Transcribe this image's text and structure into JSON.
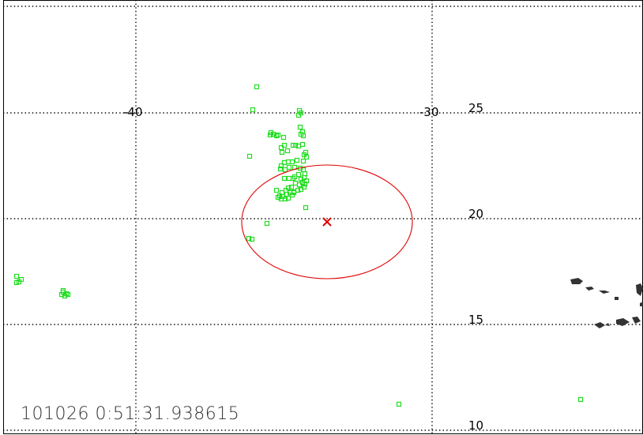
{
  "map": {
    "timestamp": "101026 0:51:31.938615",
    "lon_labels": [
      "-40",
      "-30"
    ],
    "lat_labels": [
      "25",
      "20",
      "15",
      "10"
    ],
    "colors": {
      "grid": "#000000",
      "detection": "#22dd22",
      "ellipse": "#e00000",
      "center": "#e00000",
      "land": "#333333",
      "background": "#ffffff"
    },
    "marker_symbols": {
      "detection": "green-square",
      "center": "red-x"
    }
  }
}
